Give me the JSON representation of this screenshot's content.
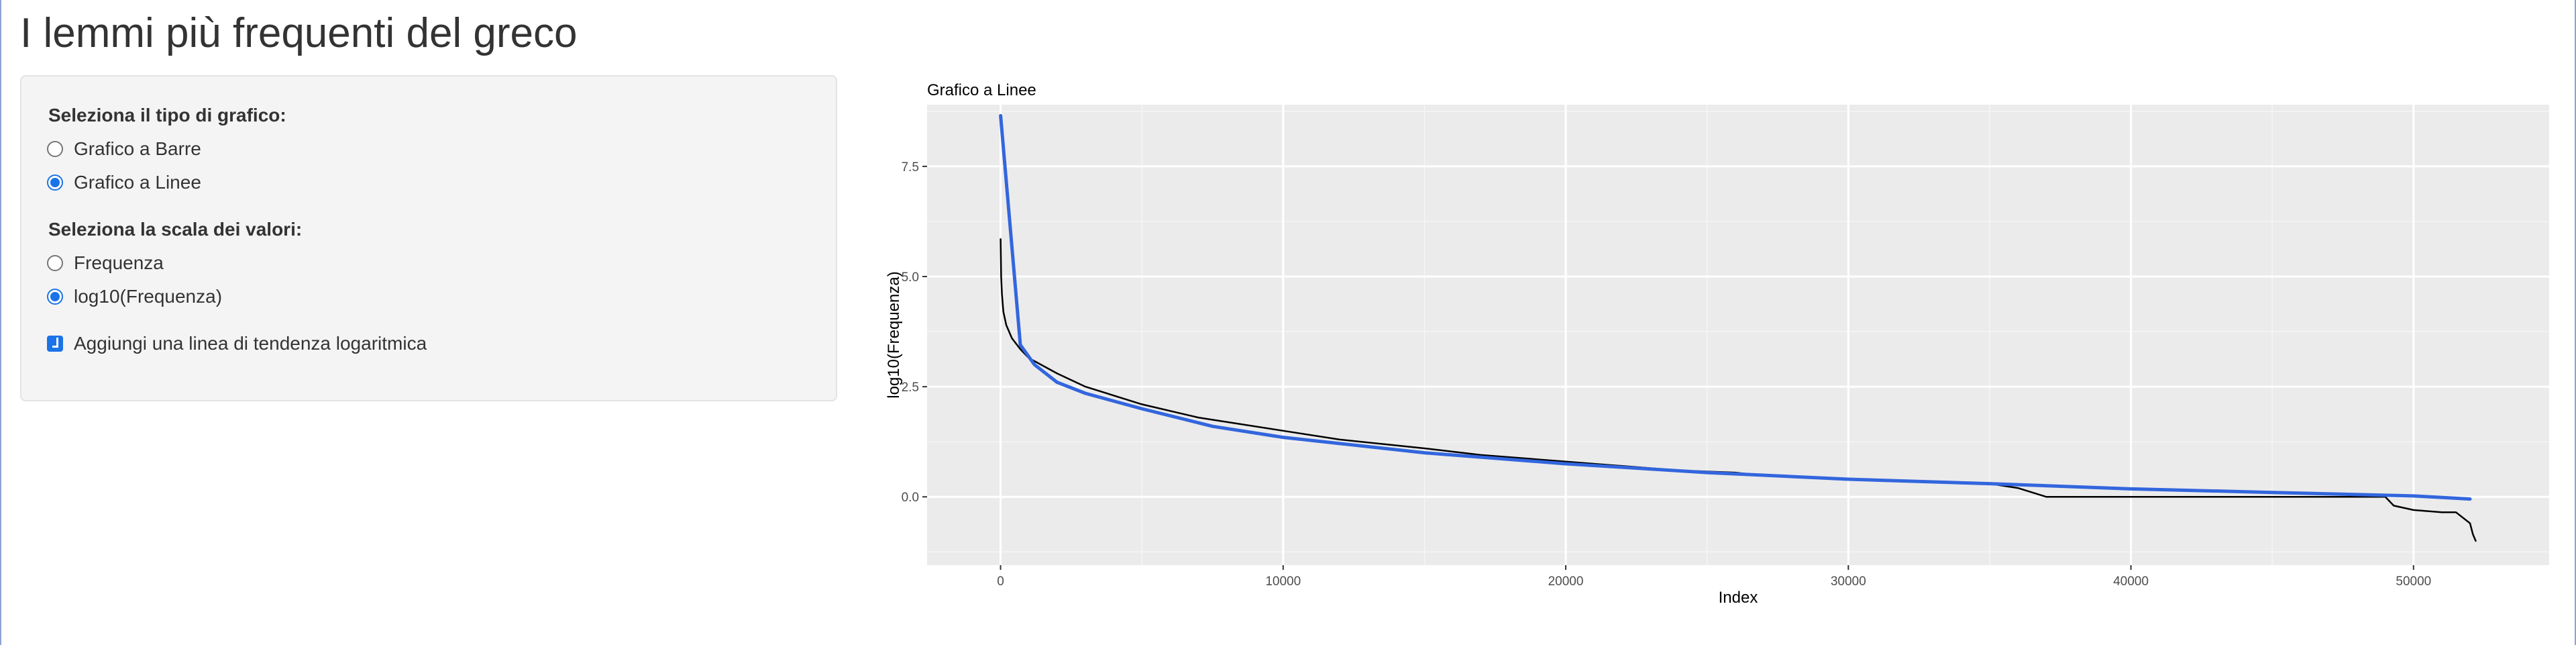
{
  "page": {
    "title": "I lemmi più frequenti del greco"
  },
  "controls": {
    "chart_type": {
      "label": "Seleziona il tipo di grafico:",
      "options": [
        {
          "label": "Grafico a Barre",
          "selected": false
        },
        {
          "label": "Grafico a Linee",
          "selected": true
        }
      ]
    },
    "scale": {
      "label": "Seleziona la scala dei valori:",
      "options": [
        {
          "label": "Frequenza",
          "selected": false
        },
        {
          "label": "log10(Frequenza)",
          "selected": true
        }
      ]
    },
    "trend": {
      "label": "Aggiungi una linea di tendenza logaritmica",
      "checked": true
    }
  },
  "colors": {
    "accent": "#1a73e8",
    "panel_bg": "#f4f4f4",
    "plot_bg": "#ebebeb",
    "data_line": "#000000",
    "trend_line": "#3366dd"
  },
  "chart_data": {
    "type": "line",
    "title": "Grafico a Linee",
    "xlabel": "Index",
    "ylabel": "log10(Frequenza)",
    "xlim": [
      -2600,
      54800
    ],
    "ylim": [
      -1.55,
      8.9
    ],
    "xticks": [
      0,
      10000,
      20000,
      30000,
      40000,
      50000
    ],
    "yticks": [
      0.0,
      2.5,
      5.0,
      7.5
    ],
    "xtick_labels": [
      "0",
      "10000",
      "20000",
      "30000",
      "40000",
      "50000"
    ],
    "ytick_labels": [
      "0.0",
      "2.5",
      "5.0",
      "7.5"
    ],
    "grid": true,
    "series": [
      {
        "kind": "data",
        "x": [
          1,
          20,
          50,
          100,
          200,
          400,
          700,
          1000,
          2000,
          3000,
          5000,
          7000,
          10000,
          12000,
          15000,
          17000,
          20000,
          22000,
          24000,
          26000,
          27000,
          28000,
          30000,
          32000,
          35000,
          36000,
          37000,
          40000,
          45000,
          49000,
          49300,
          50000,
          51000,
          51500,
          52000,
          52100,
          52200
        ],
        "y": [
          5.85,
          5.0,
          4.6,
          4.2,
          3.9,
          3.6,
          3.35,
          3.15,
          2.8,
          2.5,
          2.1,
          1.8,
          1.5,
          1.3,
          1.1,
          0.95,
          0.8,
          0.7,
          0.6,
          0.55,
          0.48,
          0.46,
          0.4,
          0.35,
          0.3,
          0.2,
          0.0,
          0.0,
          0.0,
          0.0,
          -0.2,
          -0.3,
          -0.35,
          -0.35,
          -0.6,
          -0.85,
          -1.0
        ]
      },
      {
        "kind": "trend",
        "x": [
          1,
          700,
          1200,
          2000,
          3000,
          5000,
          7500,
          10000,
          15000,
          20000,
          25000,
          30000,
          35000,
          40000,
          45000,
          50000,
          52000
        ],
        "y": [
          8.65,
          3.45,
          3.0,
          2.6,
          2.35,
          2.0,
          1.6,
          1.35,
          1.0,
          0.75,
          0.55,
          0.4,
          0.3,
          0.18,
          0.1,
          0.02,
          -0.05
        ]
      }
    ]
  }
}
